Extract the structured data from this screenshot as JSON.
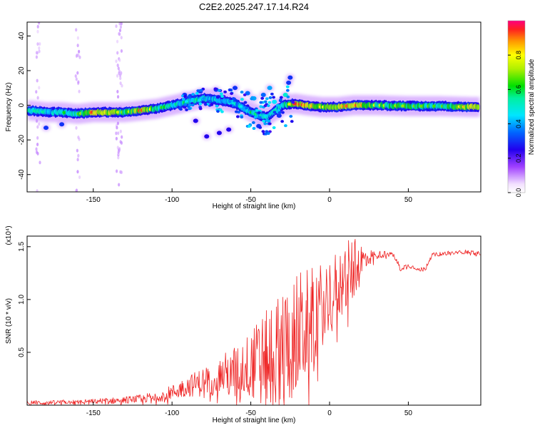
{
  "title": "C2E2.2025.247.17.14.R24",
  "colors": {
    "snr_line": "#ee2222",
    "axis": "#000000",
    "background": "#ffffff"
  },
  "chart_data": [
    {
      "type": "heatmap",
      "name": "spectrogram",
      "xlabel": "Height of straight line (km)",
      "ylabel": "Frequency (Hz)",
      "xlim": [
        -192,
        96
      ],
      "ylim": [
        -50,
        48
      ],
      "xticks": [
        -150,
        -100,
        -50,
        0,
        50
      ],
      "yticks": [
        -40,
        -20,
        0,
        20,
        40
      ],
      "ridge": [
        {
          "x": -190,
          "f": -3,
          "a": 0.5
        },
        {
          "x": -180,
          "f": -4,
          "a": 0.5
        },
        {
          "x": -170,
          "f": -4,
          "a": 0.55
        },
        {
          "x": -160,
          "f": -5,
          "a": 0.6
        },
        {
          "x": -150,
          "f": -4,
          "a": 0.9
        },
        {
          "x": -140,
          "f": -4,
          "a": 0.85
        },
        {
          "x": -130,
          "f": -4,
          "a": 0.6
        },
        {
          "x": -120,
          "f": -3,
          "a": 0.9
        },
        {
          "x": -110,
          "f": -2,
          "a": 0.65
        },
        {
          "x": -100,
          "f": 0,
          "a": 0.5
        },
        {
          "x": -90,
          "f": 2,
          "a": 0.55
        },
        {
          "x": -80,
          "f": 4,
          "a": 0.5
        },
        {
          "x": -70,
          "f": 3,
          "a": 0.45
        },
        {
          "x": -60,
          "f": 1,
          "a": 0.45
        },
        {
          "x": -50,
          "f": -4,
          "a": 0.55
        },
        {
          "x": -40,
          "f": -7,
          "a": 0.45
        },
        {
          "x": -30,
          "f": 0,
          "a": 0.5
        },
        {
          "x": -22,
          "f": 1,
          "a": 0.9
        },
        {
          "x": -15,
          "f": 0,
          "a": 0.85
        },
        {
          "x": -5,
          "f": -1,
          "a": 0.75
        },
        {
          "x": 5,
          "f": -1,
          "a": 0.8
        },
        {
          "x": 15,
          "f": 0,
          "a": 0.9
        },
        {
          "x": 30,
          "f": 0,
          "a": 0.7
        },
        {
          "x": 50,
          "f": -0.5,
          "a": 0.65
        },
        {
          "x": 70,
          "f": -0.5,
          "a": 0.6
        },
        {
          "x": 90,
          "f": -1,
          "a": 0.85
        }
      ],
      "blobs": [
        {
          "x": -180,
          "f": -13,
          "a": 0.3
        },
        {
          "x": -170,
          "f": -11,
          "a": 0.3
        },
        {
          "x": -92,
          "f": 6,
          "a": 0.3
        },
        {
          "x": -85,
          "f": -9,
          "a": 0.25
        },
        {
          "x": -82,
          "f": 8,
          "a": 0.3
        },
        {
          "x": -78,
          "f": -18,
          "a": 0.25
        },
        {
          "x": -72,
          "f": 9,
          "a": 0.3
        },
        {
          "x": -70,
          "f": -16,
          "a": 0.25
        },
        {
          "x": -64,
          "f": -14,
          "a": 0.25
        },
        {
          "x": -60,
          "f": 10,
          "a": 0.3
        },
        {
          "x": -55,
          "f": -2,
          "a": 0.4
        },
        {
          "x": -52,
          "f": 7,
          "a": 0.35
        },
        {
          "x": -48,
          "f": 4,
          "a": 0.4
        },
        {
          "x": -45,
          "f": -12,
          "a": 0.3
        },
        {
          "x": -42,
          "f": 6,
          "a": 0.35
        },
        {
          "x": -38,
          "f": 10,
          "a": 0.4
        },
        {
          "x": -35,
          "f": 2,
          "a": 0.45
        },
        {
          "x": -32,
          "f": -6,
          "a": 0.3
        },
        {
          "x": -28,
          "f": 6,
          "a": 0.5
        },
        {
          "x": -26,
          "f": 13,
          "a": 0.3
        },
        {
          "x": -25,
          "f": 16,
          "a": 0.3
        }
      ],
      "colorbar": {
        "label": "Normalized spectral amplitude",
        "range": [
          0,
          1
        ],
        "ticks": [
          "0.0",
          "0.2",
          "0.4",
          "0.6",
          "0.8"
        ],
        "tick_values": [
          0,
          0.2,
          0.4,
          0.6,
          0.8
        ]
      }
    },
    {
      "type": "line",
      "name": "snr",
      "xlabel": "Height of straight line (km)",
      "ylabel": "SNR (10 * v/v)",
      "y_scale_label": "(x10⁴)",
      "xlim": [
        -192,
        96
      ],
      "ylim": [
        0,
        1.6
      ],
      "xticks": [
        -150,
        -100,
        -50,
        0,
        50
      ],
      "yticks": [
        "0.5",
        "1.0",
        "1.5"
      ],
      "ytick_values": [
        0.5,
        1.0,
        1.5
      ],
      "x": [
        -192,
        -180,
        -170,
        -160,
        -150,
        -140,
        -130,
        -120,
        -110,
        -100,
        -90,
        -80,
        -70,
        -60,
        -50,
        -45,
        -40,
        -35,
        -30,
        -25,
        -20,
        -15,
        -10,
        -5,
        0,
        5,
        10,
        15,
        20,
        25,
        30,
        35,
        40,
        45,
        50,
        55,
        60,
        65,
        70,
        75,
        80,
        85,
        90,
        96
      ],
      "baseline": [
        0.03,
        0.02,
        0.03,
        0.03,
        0.04,
        0.04,
        0.05,
        0.06,
        0.08,
        0.12,
        0.18,
        0.22,
        0.28,
        0.32,
        0.38,
        0.42,
        0.45,
        0.5,
        0.55,
        0.62,
        0.68,
        0.75,
        0.85,
        0.95,
        1.05,
        1.12,
        1.2,
        1.28,
        1.35,
        1.4,
        1.42,
        1.43,
        1.43,
        1.3,
        1.32,
        1.3,
        1.28,
        1.42,
        1.43,
        1.44,
        1.44,
        1.45,
        1.45,
        1.43
      ],
      "noise": [
        0.02,
        0.02,
        0.02,
        0.02,
        0.02,
        0.03,
        0.03,
        0.04,
        0.05,
        0.07,
        0.1,
        0.14,
        0.18,
        0.25,
        0.32,
        0.4,
        0.45,
        0.5,
        0.55,
        0.6,
        0.6,
        0.55,
        0.45,
        0.4,
        0.35,
        0.35,
        0.35,
        0.3,
        0.2,
        0.08,
        0.04,
        0.03,
        0.02,
        0.03,
        0.02,
        0.02,
        0.03,
        0.02,
        0.02,
        0.02,
        0.02,
        0.02,
        0.02,
        0.02
      ]
    }
  ]
}
